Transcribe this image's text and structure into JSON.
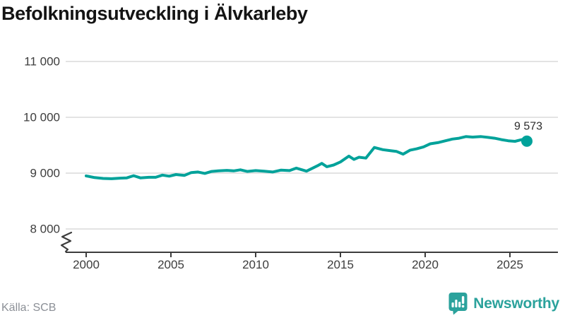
{
  "title": "Befolkningsutveckling i Älvkarleby",
  "footer": {
    "source": "Källa: SCB",
    "brand": "Newsworthy"
  },
  "colors": {
    "line": "#00a29a",
    "grid": "#e3e3e3",
    "axis": "#3d3d3d",
    "tick_text": "#3d3d3d",
    "end_label_text": "#2b2b2b",
    "brand_teal": "#2ba29c",
    "title_text": "#141414",
    "source_text": "#8b8f96"
  },
  "chart_data": {
    "type": "line",
    "title": "Befolkningsutveckling i Älvkarleby",
    "xlabel": "",
    "ylabel": "",
    "grid": "horizontal-only",
    "axis_break_bottom_left": true,
    "legend": "none",
    "x_ticks": {
      "values": [
        2000,
        2005,
        2010,
        2015,
        2020,
        2025
      ],
      "labels": [
        "2000",
        "2005",
        "2010",
        "2015",
        "2020",
        "2025"
      ]
    },
    "y_ticks": {
      "values": [
        8000,
        9000,
        10000,
        11000
      ],
      "labels": [
        "8 000",
        "9 000",
        "10 000",
        "11 000"
      ]
    },
    "ylim_displayed": [
      8000,
      11000
    ],
    "xlim": [
      2000,
      2026
    ],
    "end_point": {
      "x": 2026,
      "value": 9573,
      "label": "9 573"
    },
    "series": [
      {
        "name": "Befolkning",
        "points": [
          [
            2000.0,
            8950
          ],
          [
            2000.5,
            8920
          ],
          [
            2001.0,
            8905
          ],
          [
            2001.5,
            8900
          ],
          [
            2002.0,
            8910
          ],
          [
            2002.4,
            8915
          ],
          [
            2002.8,
            8955
          ],
          [
            2003.2,
            8915
          ],
          [
            2003.7,
            8925
          ],
          [
            2004.1,
            8925
          ],
          [
            2004.5,
            8965
          ],
          [
            2004.9,
            8945
          ],
          [
            2005.3,
            8975
          ],
          [
            2005.8,
            8960
          ],
          [
            2006.2,
            9010
          ],
          [
            2006.6,
            9020
          ],
          [
            2007.0,
            8995
          ],
          [
            2007.4,
            9030
          ],
          [
            2007.8,
            9040
          ],
          [
            2008.3,
            9050
          ],
          [
            2008.7,
            9040
          ],
          [
            2009.1,
            9060
          ],
          [
            2009.5,
            9030
          ],
          [
            2010.0,
            9045
          ],
          [
            2010.5,
            9035
          ],
          [
            2011.0,
            9020
          ],
          [
            2011.5,
            9055
          ],
          [
            2012.0,
            9045
          ],
          [
            2012.4,
            9090
          ],
          [
            2013.0,
            9035
          ],
          [
            2013.7,
            9140
          ],
          [
            2013.9,
            9175
          ],
          [
            2014.2,
            9115
          ],
          [
            2014.6,
            9145
          ],
          [
            2015.0,
            9200
          ],
          [
            2015.5,
            9305
          ],
          [
            2015.8,
            9245
          ],
          [
            2016.1,
            9285
          ],
          [
            2016.5,
            9270
          ],
          [
            2017.0,
            9460
          ],
          [
            2017.5,
            9420
          ],
          [
            2018.0,
            9400
          ],
          [
            2018.3,
            9390
          ],
          [
            2018.7,
            9340
          ],
          [
            2019.1,
            9410
          ],
          [
            2019.5,
            9435
          ],
          [
            2019.9,
            9470
          ],
          [
            2020.3,
            9525
          ],
          [
            2020.8,
            9550
          ],
          [
            2021.2,
            9580
          ],
          [
            2021.6,
            9610
          ],
          [
            2022.0,
            9625
          ],
          [
            2022.4,
            9655
          ],
          [
            2022.8,
            9645
          ],
          [
            2023.3,
            9655
          ],
          [
            2023.7,
            9640
          ],
          [
            2024.1,
            9625
          ],
          [
            2024.5,
            9600
          ],
          [
            2024.9,
            9580
          ],
          [
            2025.3,
            9570
          ],
          [
            2025.7,
            9600
          ],
          [
            2026.0,
            9573
          ]
        ]
      }
    ]
  },
  "icons": {
    "brand_icon": "newsworthy-chart-bubble-icon"
  }
}
